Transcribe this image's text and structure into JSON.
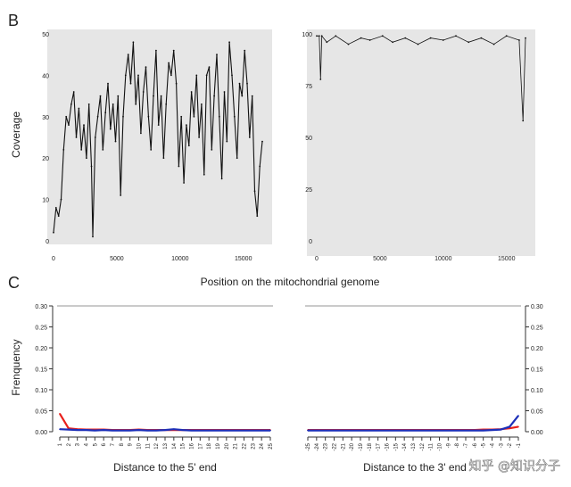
{
  "panel_labels": {
    "b": "B",
    "c": "C"
  },
  "watermark": "知乎 @知识分子",
  "colors": {
    "panel_bg": "#e6e6e6",
    "line": "#111111",
    "red": "#e8201c",
    "blue": "#1c2fb8",
    "axis": "#333333"
  },
  "chart_data": [
    {
      "id": "coverage",
      "type": "line",
      "title": "",
      "xlabel": "",
      "ylabel": "Coverage",
      "shared_xlabel": "Position on the mitochondrial genome",
      "xlim": [
        0,
        16569
      ],
      "ylim": [
        0,
        50
      ],
      "x_ticks": [
        0,
        5000,
        10000,
        15000
      ],
      "y_ticks": [
        0,
        10,
        20,
        30,
        40,
        50
      ],
      "grid": false,
      "series": [
        {
          "x": [
            0,
            200,
            400,
            600,
            800,
            1000,
            1200,
            1400,
            1600,
            1800,
            2000,
            2200,
            2400,
            2600,
            2800,
            3000,
            3100,
            3300,
            3500,
            3700,
            3900,
            4100,
            4300,
            4500,
            4700,
            4900,
            5100,
            5300,
            5500,
            5700,
            5900,
            6100,
            6300,
            6500,
            6700,
            6900,
            7100,
            7300,
            7500,
            7700,
            7900,
            8100,
            8300,
            8500,
            8700,
            8900,
            9100,
            9300,
            9500,
            9700,
            9900,
            10100,
            10300,
            10500,
            10700,
            10900,
            11100,
            11300,
            11500,
            11700,
            11900,
            12100,
            12300,
            12500,
            12700,
            12900,
            13100,
            13300,
            13500,
            13700,
            13900,
            14100,
            14300,
            14500,
            14700,
            14900,
            15100,
            15300,
            15500,
            15700,
            15900,
            16100,
            16300,
            16500
          ],
          "values": [
            2,
            8,
            6,
            10,
            22,
            30,
            28,
            33,
            36,
            25,
            32,
            22,
            28,
            20,
            33,
            18,
            1,
            25,
            30,
            35,
            22,
            31,
            38,
            27,
            33,
            24,
            35,
            11,
            30,
            40,
            45,
            38,
            48,
            33,
            40,
            26,
            36,
            42,
            30,
            22,
            35,
            46,
            28,
            35,
            20,
            33,
            43,
            40,
            46,
            38,
            18,
            30,
            14,
            28,
            23,
            36,
            30,
            40,
            25,
            33,
            16,
            40,
            42,
            22,
            35,
            45,
            30,
            15,
            36,
            24,
            48,
            40,
            30,
            20,
            38,
            35,
            46,
            38,
            25,
            35,
            12,
            6,
            18,
            24
          ]
        }
      ]
    },
    {
      "id": "percentage",
      "type": "line",
      "title": "",
      "xlabel": "",
      "ylabel": "",
      "xlim": [
        0,
        16569
      ],
      "ylim": [
        0,
        100
      ],
      "x_ticks": [
        0,
        5000,
        10000,
        15000
      ],
      "y_ticks": [
        0,
        25,
        50,
        75,
        100
      ],
      "grid": false,
      "series": [
        {
          "x": [
            0,
            200,
            300,
            400,
            800,
            1500,
            2500,
            3500,
            4200,
            5200,
            6000,
            7000,
            8000,
            9000,
            10000,
            11000,
            12000,
            13000,
            14000,
            15000,
            16000,
            16300,
            16500
          ],
          "values": [
            99,
            99,
            78,
            99,
            96,
            99,
            95,
            98,
            97,
            99,
            96,
            98,
            95,
            98,
            97,
            99,
            96,
            98,
            95,
            99,
            97,
            58,
            98
          ]
        }
      ]
    },
    {
      "id": "freq-5prime",
      "type": "line",
      "title": "",
      "xlabel": "Distance to the 5' end",
      "ylabel": "Frenquency",
      "ylim": [
        0,
        0.3
      ],
      "y_ticks": [
        "0.00",
        "0.05",
        "0.10",
        "0.15",
        "0.20",
        "0.25",
        "0.30"
      ],
      "categories": [
        "1",
        "2",
        "3",
        "4",
        "5",
        "6",
        "7",
        "8",
        "9",
        "10",
        "11",
        "12",
        "13",
        "14",
        "15",
        "16",
        "17",
        "18",
        "19",
        "20",
        "21",
        "22",
        "23",
        "24",
        "25"
      ],
      "grid": false,
      "series": [
        {
          "color": "red",
          "values": [
            0.043,
            0.008,
            0.006,
            0.005,
            0.005,
            0.005,
            0.004,
            0.004,
            0.004,
            0.005,
            0.004,
            0.004,
            0.004,
            0.004,
            0.004,
            0.004,
            0.004,
            0.004,
            0.004,
            0.004,
            0.004,
            0.004,
            0.004,
            0.004,
            0.004
          ]
        },
        {
          "color": "blue",
          "values": [
            0.006,
            0.005,
            0.004,
            0.004,
            0.003,
            0.004,
            0.003,
            0.003,
            0.003,
            0.004,
            0.003,
            0.003,
            0.004,
            0.006,
            0.004,
            0.003,
            0.003,
            0.003,
            0.003,
            0.003,
            0.003,
            0.003,
            0.003,
            0.003,
            0.003
          ]
        }
      ]
    },
    {
      "id": "freq-3prime",
      "type": "line",
      "title": "",
      "xlabel": "Distance to the 3' end",
      "ylabel": "",
      "ylim": [
        0,
        0.3
      ],
      "y_ticks": [
        "0.00",
        "0.05",
        "0.10",
        "0.15",
        "0.20",
        "0.25",
        "0.30"
      ],
      "categories": [
        "-25",
        "-24",
        "-23",
        "-22",
        "-21",
        "-20",
        "-19",
        "-18",
        "-17",
        "-16",
        "-15",
        "-14",
        "-13",
        "-12",
        "-11",
        "-10",
        "-9",
        "-8",
        "-7",
        "-6",
        "-5",
        "-4",
        "-3",
        "-2",
        "-1"
      ],
      "grid": false,
      "series": [
        {
          "color": "red",
          "values": [
            0.004,
            0.004,
            0.004,
            0.004,
            0.004,
            0.004,
            0.004,
            0.004,
            0.004,
            0.004,
            0.004,
            0.004,
            0.004,
            0.004,
            0.004,
            0.004,
            0.004,
            0.004,
            0.004,
            0.004,
            0.005,
            0.005,
            0.006,
            0.008,
            0.012
          ]
        },
        {
          "color": "blue",
          "values": [
            0.003,
            0.003,
            0.003,
            0.003,
            0.003,
            0.003,
            0.003,
            0.003,
            0.003,
            0.003,
            0.003,
            0.003,
            0.003,
            0.003,
            0.003,
            0.003,
            0.003,
            0.003,
            0.003,
            0.003,
            0.003,
            0.004,
            0.005,
            0.012,
            0.038
          ]
        }
      ]
    }
  ]
}
